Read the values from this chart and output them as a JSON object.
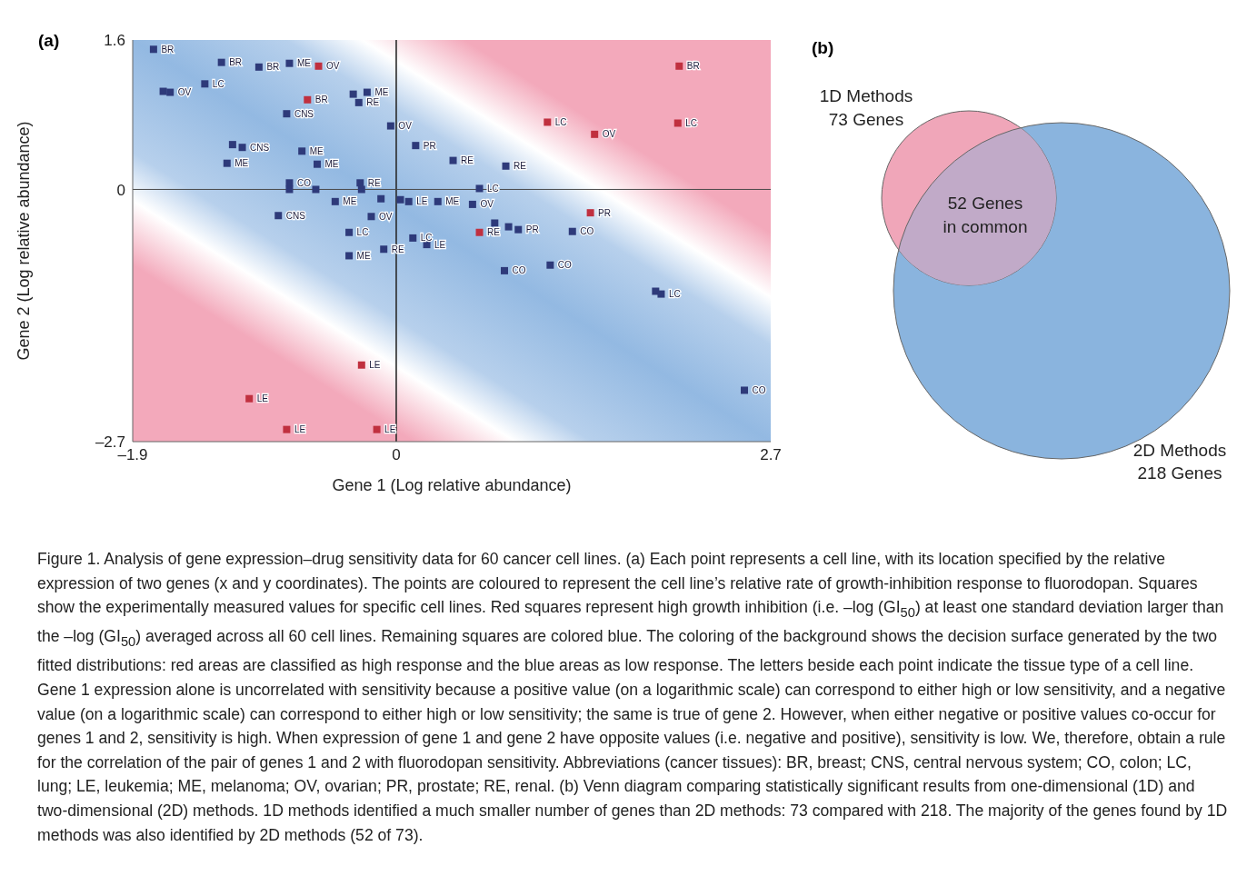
{
  "chart_data": [
    {
      "type": "scatter",
      "title": "(a)",
      "xlabel": "Gene 1 (Log relative abundance)",
      "ylabel": "Gene 2 (Log relative abundance)",
      "xlim": [
        -1.9,
        2.7
      ],
      "xticks": [
        {
          "value": -1.9,
          "label": "–1.9"
        },
        0,
        2.7
      ],
      "ylim": [
        -2.7,
        1.6
      ],
      "yticks": [
        1.6,
        0,
        {
          "value": -2.7,
          "label": "–2.7"
        }
      ],
      "marker": "square",
      "ref_lines": [
        {
          "axis": "x",
          "value": 0
        },
        {
          "axis": "y",
          "value": 0
        }
      ],
      "series": [
        {
          "color": "#2e3a7a",
          "x": [
            -1.75,
            -1.26,
            -0.99,
            -0.77,
            -1.38,
            -1.68,
            -1.63,
            -0.31,
            -0.21,
            -0.27,
            -0.79,
            -1.18,
            -1.11,
            -1.22,
            -0.68,
            -0.57,
            -0.77,
            -0.77,
            -0.58,
            -0.26,
            -0.25,
            -0.44,
            -0.85,
            -0.18,
            -0.11,
            -0.34,
            -0.34,
            -0.09,
            -0.04,
            0.14,
            0.41,
            0.79,
            0.6,
            0.03,
            0.09,
            0.3,
            0.55,
            0.12,
            0.22,
            0.71,
            0.81,
            0.88,
            1.27,
            0.78,
            1.11,
            1.87,
            1.91,
            2.51
          ],
          "values": [
            1.5,
            1.36,
            1.31,
            1.35,
            1.13,
            1.05,
            1.04,
            1.02,
            1.04,
            0.93,
            0.81,
            0.48,
            0.45,
            0.28,
            0.41,
            0.27,
            0.07,
            0.0,
            0.0,
            0.07,
            0.0,
            -0.13,
            -0.28,
            -0.29,
            -0.1,
            -0.46,
            -0.71,
            -0.64,
            0.68,
            0.47,
            0.31,
            0.25,
            0.01,
            -0.11,
            -0.13,
            -0.13,
            -0.16,
            -0.52,
            -0.59,
            -0.36,
            -0.4,
            -0.43,
            -0.45,
            -0.87,
            -0.81,
            -1.09,
            -1.12,
            -2.15
          ],
          "value_labels": [
            "BR",
            "BR",
            "BR",
            "ME",
            "LC",
            null,
            "OV",
            null,
            "ME",
            "RE",
            "CNS",
            null,
            "CNS",
            "ME",
            "ME",
            "ME",
            "CO",
            null,
            null,
            "RE",
            null,
            "ME",
            "CNS",
            "OV",
            null,
            "LC",
            "ME",
            "RE",
            "OV",
            "PR",
            "RE",
            "RE",
            "LC",
            null,
            "LE",
            "ME",
            "OV",
            "LC",
            "LE",
            null,
            null,
            "PR",
            "CO",
            "CO",
            "CO",
            null,
            "LC",
            "CO"
          ]
        },
        {
          "color": "#c0303f",
          "x": [
            -0.56,
            -0.64,
            2.04,
            1.09,
            1.43,
            2.03,
            1.4,
            0.6,
            -0.25,
            -1.06,
            -0.79,
            -0.14
          ],
          "values": [
            1.32,
            0.96,
            1.32,
            0.72,
            0.59,
            0.71,
            -0.25,
            -0.46,
            -1.88,
            -2.24,
            -2.57,
            -2.57
          ],
          "value_labels": [
            "OV",
            "BR",
            "BR",
            "LC",
            "OV",
            "LC",
            "PR",
            "RE",
            "LE",
            "LE",
            "LE",
            "LE"
          ]
        }
      ],
      "annotations": [
        "Figure 1. Analysis of gene expression–drug sensitivity data for 60 cancer cell lines. (a) Each point represents a cell line, with its location specified by the relative expression of two genes (x and y coordinates). The points are coloured to represent the cell line’s relative rate of growth-inhibition response to fluorodopan. Squares show the experimentally measured values for specific cell lines. Red squares represent high growth inhibition (i.e. –log (GI$_{50}$) at least one standard deviation larger than the –log (GI$_{50}$) averaged across all 60 cell lines. Remaining squares are colored blue. The coloring of the background shows the decision surface generated by the two fitted distributions: red areas are classified as high response and the blue areas as low response. The letters beside each point indicate the tissue type of a cell line. Gene 1 expression alone is uncorrelated with sensitivity because a positive value (on a logarithmic scale) can correspond to either high or low sensitivity, and a negative value (on a logarithmic scale) can correspond to either high or low sensitivity; the same is true of gene 2. However, when either negative or positive values co-occur for genes 1 and 2, sensitivity is high. When expression of gene 1 and gene 2 have opposite values (i.e. negative and positive), sensitivity is low. We, therefore, obtain a rule for the correlation of the pair of genes 1 and 2 with fluorodopan sensitivity. Abbreviations (cancer tissues): BR, breast; CNS, central nervous system; CO, colon; LC, lung; LE, leukemia; ME, melanoma; OV, ovarian; PR, prostate; RE, renal. (b) Venn diagram comparing statistically significant results from one-dimensional (1D) and two-dimensional (2D) methods. 1D methods identified a much smaller number of genes than 2D methods: 73 compared with 218. The majority of the genes found by 1D methods was also identified by 2D methods (52 of 73)."
      ]
    },
    {
      "type": "other",
      "title": "(b)",
      "annotations": [
        "1D Methods",
        "73 Genes",
        "52 Genes",
        "in common",
        "2D Methods",
        "218 Genes"
      ]
    }
  ]
}
